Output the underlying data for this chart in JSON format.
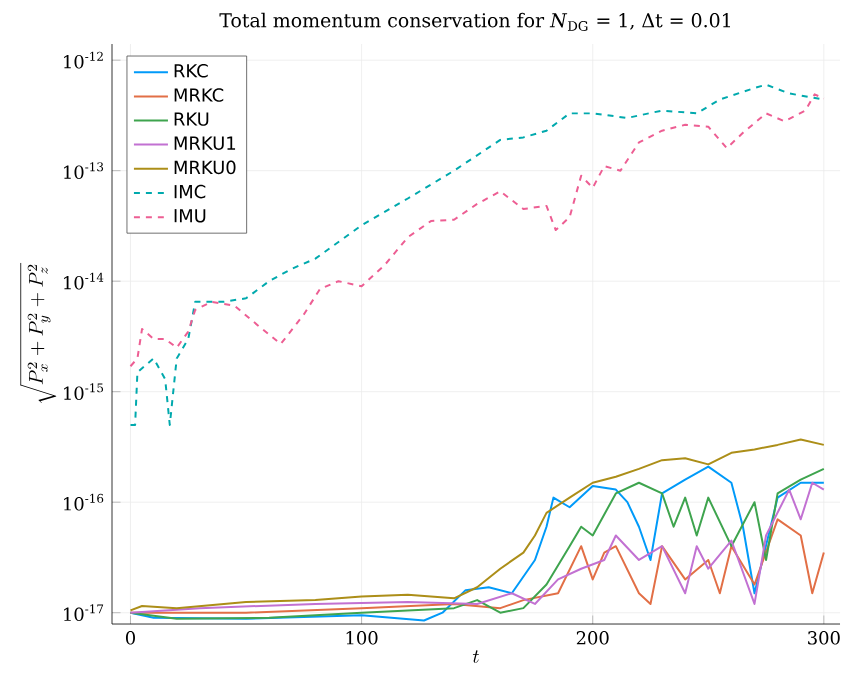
{
  "chart_data": {
    "type": "line",
    "title": "Total momentum conservation for *N*$_{DG}$ = 1, Δt = 0.01",
    "xlabel": "t",
    "ylabel": "\\sqrt{P_x^2 + P_y^2 + P_z^2}",
    "log": "y",
    "grid": true,
    "legend": "top left",
    "line_style": "solid",
    "marker": "none",
    "xlim": [
      -8,
      307
    ],
    "ylim": [
      7.9e-18,
      1.4e-12
    ],
    "xticks": [
      0,
      100,
      200,
      300
    ],
    "yticks": [
      {
        "value": 1e-17,
        "label": "10$^{-17}$"
      },
      {
        "value": 1e-16,
        "label": "10$^{-16}$"
      },
      {
        "value": 1e-15,
        "label": "10$^{-15}$"
      },
      {
        "value": 1e-14,
        "label": "10$^{-14}$"
      },
      {
        "value": 1e-13,
        "label": "10$^{-13}$"
      },
      {
        "value": 1e-12,
        "label": "10$^{-12}$"
      }
    ],
    "series": [
      {
        "name": "RKC",
        "color": "#009af9",
        "x": [
          0,
          10,
          50,
          100,
          127,
          135,
          145,
          155,
          165,
          175,
          180,
          183,
          190,
          200,
          210,
          215,
          220,
          225,
          230,
          240,
          250,
          260,
          265,
          270,
          280,
          290,
          300
        ],
        "values": [
          1e-17,
          9e-18,
          8.8e-18,
          9.5e-18,
          8.5e-18,
          1e-17,
          1.6e-17,
          1.7e-17,
          1.5e-17,
          3e-17,
          6e-17,
          1.1e-16,
          9e-17,
          1.4e-16,
          1.3e-16,
          1e-16,
          6e-17,
          3e-17,
          1.2e-16,
          1.6e-16,
          2.1e-16,
          1.5e-16,
          6e-17,
          1.5e-17,
          1.1e-16,
          1.5e-16,
          1.5e-16
        ]
      },
      {
        "name": "MRKC",
        "color": "#e26f46",
        "x": [
          0,
          50,
          100,
          140,
          160,
          170,
          185,
          195,
          200,
          205,
          210,
          220,
          225,
          230,
          240,
          250,
          255,
          260,
          270,
          280,
          290,
          295,
          300
        ],
        "values": [
          1e-17,
          1e-17,
          1.1e-17,
          1.2e-17,
          1.1e-17,
          1.3e-17,
          1.5e-17,
          4e-17,
          2e-17,
          3.5e-17,
          4e-17,
          1.5e-17,
          1.2e-17,
          4e-17,
          2e-17,
          3e-17,
          1.5e-17,
          4e-17,
          1.8e-17,
          7e-17,
          5e-17,
          1.5e-17,
          3.5e-17
        ]
      },
      {
        "name": "RKU",
        "color": "#3ea44e",
        "x": [
          0,
          20,
          60,
          100,
          140,
          150,
          160,
          170,
          180,
          190,
          195,
          200,
          210,
          220,
          230,
          235,
          240,
          245,
          250,
          260,
          270,
          275,
          280,
          290,
          300
        ],
        "values": [
          1e-17,
          8.8e-18,
          9e-18,
          1e-17,
          1.1e-17,
          1.3e-17,
          1e-17,
          1.1e-17,
          1.8e-17,
          4e-17,
          6e-17,
          5e-17,
          1.2e-16,
          1.5e-16,
          1.2e-16,
          6e-17,
          1.1e-16,
          5e-17,
          1.1e-16,
          4e-17,
          1e-16,
          3e-17,
          1.2e-16,
          1.6e-16,
          2e-16
        ]
      },
      {
        "name": "MRKU1",
        "color": "#c271d2",
        "x": [
          0,
          30,
          80,
          120,
          150,
          165,
          175,
          185,
          195,
          205,
          210,
          220,
          230,
          240,
          245,
          250,
          260,
          270,
          275,
          285,
          290,
          295,
          300
        ],
        "values": [
          1e-17,
          1.1e-17,
          1.2e-17,
          1.25e-17,
          1.2e-17,
          1.5e-17,
          1.2e-17,
          2e-17,
          2.5e-17,
          3e-17,
          5e-17,
          3e-17,
          4e-17,
          1.5e-17,
          4e-17,
          2.5e-17,
          4.5e-17,
          1.2e-17,
          5e-17,
          1.3e-16,
          7e-17,
          1.5e-16,
          1.3e-16
        ]
      },
      {
        "name": "MRKU0",
        "color": "#ac8e18",
        "x": [
          0,
          5,
          20,
          50,
          80,
          100,
          120,
          140,
          150,
          160,
          170,
          175,
          180,
          190,
          200,
          210,
          220,
          230,
          240,
          250,
          260,
          270,
          280,
          290,
          300
        ],
        "values": [
          1.05e-17,
          1.15e-17,
          1.1e-17,
          1.25e-17,
          1.3e-17,
          1.4e-17,
          1.45e-17,
          1.35e-17,
          1.7e-17,
          2.5e-17,
          3.5e-17,
          5e-17,
          8e-17,
          1.1e-16,
          1.5e-16,
          1.7e-16,
          2e-16,
          2.4e-16,
          2.5e-16,
          2.2e-16,
          2.8e-16,
          3e-16,
          3.3e-16,
          3.7e-16,
          3.3e-16
        ]
      },
      {
        "name": "IMC",
        "color": "#00a9ad",
        "line_style": "dashed",
        "x": [
          0,
          2,
          3,
          10,
          15,
          17,
          20,
          25,
          28,
          40,
          50,
          60,
          70,
          80,
          100,
          120,
          140,
          160,
          170,
          180,
          190,
          200,
          215,
          230,
          245,
          255,
          270,
          275,
          285,
          300
        ],
        "values": [
          5e-16,
          5e-16,
          1.5e-15,
          2e-15,
          1.3e-15,
          5e-16,
          2e-15,
          3e-15,
          6.5e-15,
          6.5e-15,
          7e-15,
          1e-14,
          1.3e-14,
          1.6e-14,
          3.2e-14,
          5.6e-14,
          1e-13,
          1.9e-13,
          2e-13,
          2.3e-13,
          3.3e-13,
          3.3e-13,
          3e-13,
          3.5e-13,
          3.3e-13,
          4.4e-13,
          5.6e-13,
          6e-13,
          5e-13,
          4.4e-13
        ]
      },
      {
        "name": "IMU",
        "color": "#ed5e93",
        "line_style": "dashed",
        "x": [
          0,
          3,
          5,
          10,
          15,
          20,
          25,
          28,
          35,
          45,
          55,
          65,
          75,
          82,
          90,
          100,
          110,
          120,
          130,
          140,
          150,
          160,
          170,
          180,
          184,
          190,
          195,
          200,
          205,
          212,
          220,
          230,
          240,
          250,
          258,
          265,
          275,
          283,
          292,
          296,
          300
        ],
        "values": [
          1.7e-15,
          2e-15,
          3.7e-15,
          3e-15,
          3e-15,
          2.5e-15,
          3.5e-15,
          5.5e-15,
          6.5e-15,
          6e-15,
          4e-15,
          2.7e-15,
          5e-15,
          8.5e-15,
          1e-14,
          9e-15,
          1.4e-14,
          2.5e-14,
          3.5e-14,
          3.6e-14,
          5e-14,
          6.5e-14,
          4.5e-14,
          4.8e-14,
          2.9e-14,
          3.8e-14,
          9e-14,
          7e-14,
          1.1e-13,
          1e-13,
          1.8e-13,
          2.3e-13,
          2.6e-13,
          2.5e-13,
          1.6e-13,
          2.2e-13,
          3.3e-13,
          2.8e-13,
          3.5e-13,
          4.9e-13,
          4.5e-13
        ]
      }
    ]
  }
}
